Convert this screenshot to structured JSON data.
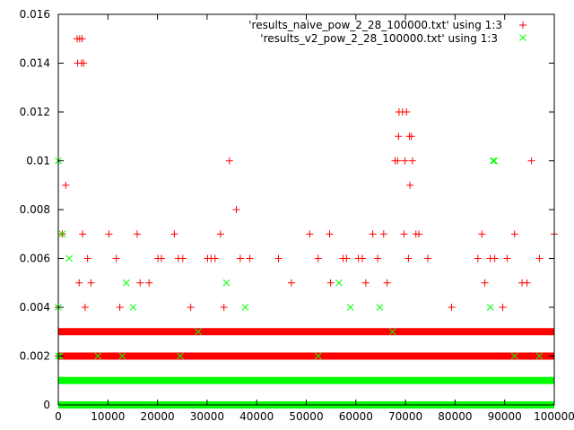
{
  "chart_data": {
    "type": "scatter",
    "xlim": [
      0,
      100000
    ],
    "ylim": [
      0,
      0.016
    ],
    "x_ticks": [
      {
        "value": 0,
        "label": "0"
      },
      {
        "value": 10000,
        "label": "10000"
      },
      {
        "value": 20000,
        "label": "20000"
      },
      {
        "value": 30000,
        "label": "30000"
      },
      {
        "value": 40000,
        "label": "40000"
      },
      {
        "value": 50000,
        "label": "50000"
      },
      {
        "value": 60000,
        "label": "60000"
      },
      {
        "value": 70000,
        "label": "70000"
      },
      {
        "value": 80000,
        "label": "80000"
      },
      {
        "value": 90000,
        "label": "90000"
      },
      {
        "value": 100000,
        "label": "100000"
      }
    ],
    "y_ticks": [
      {
        "value": 0,
        "label": "0"
      },
      {
        "value": 0.002,
        "label": "0.002"
      },
      {
        "value": 0.004,
        "label": "0.004"
      },
      {
        "value": 0.006,
        "label": "0.006"
      },
      {
        "value": 0.008,
        "label": "0.008"
      },
      {
        "value": 0.01,
        "label": "0.01"
      },
      {
        "value": 0.012,
        "label": "0.012"
      },
      {
        "value": 0.014,
        "label": "0.014"
      },
      {
        "value": 0.016,
        "label": "0.016"
      }
    ],
    "grid": false,
    "legend_position": "top-right",
    "series": [
      {
        "name": "'results_naive_pow_2_28_100000.txt' using 1:3",
        "marker": "plus",
        "color": "#ff0000",
        "bands": [
          {
            "y": 0.003,
            "x_range": [
              0,
              100000
            ]
          },
          {
            "y": 0.002,
            "x_range": [
              0,
              100000
            ]
          }
        ],
        "points": [
          {
            "x": 0,
            "y": 0.004
          },
          {
            "x": 0,
            "y": 0.002
          },
          {
            "x": 300,
            "y": 0.002
          },
          {
            "x": 800,
            "y": 0.007
          },
          {
            "x": 1500,
            "y": 0.009
          },
          {
            "x": 3800,
            "y": 0.015
          },
          {
            "x": 4300,
            "y": 0.015
          },
          {
            "x": 4800,
            "y": 0.015
          },
          {
            "x": 3900,
            "y": 0.014
          },
          {
            "x": 4700,
            "y": 0.014
          },
          {
            "x": 5100,
            "y": 0.014
          },
          {
            "x": 4200,
            "y": 0.005
          },
          {
            "x": 4900,
            "y": 0.007
          },
          {
            "x": 5400,
            "y": 0.004
          },
          {
            "x": 5900,
            "y": 0.006
          },
          {
            "x": 6600,
            "y": 0.005
          },
          {
            "x": 10200,
            "y": 0.007
          },
          {
            "x": 11700,
            "y": 0.006
          },
          {
            "x": 12400,
            "y": 0.004
          },
          {
            "x": 15900,
            "y": 0.007
          },
          {
            "x": 16500,
            "y": 0.005
          },
          {
            "x": 18300,
            "y": 0.005
          },
          {
            "x": 20100,
            "y": 0.006
          },
          {
            "x": 20800,
            "y": 0.006
          },
          {
            "x": 23400,
            "y": 0.007
          },
          {
            "x": 24200,
            "y": 0.006
          },
          {
            "x": 25100,
            "y": 0.006
          },
          {
            "x": 26700,
            "y": 0.004
          },
          {
            "x": 30100,
            "y": 0.006
          },
          {
            "x": 30800,
            "y": 0.006
          },
          {
            "x": 31600,
            "y": 0.006
          },
          {
            "x": 32700,
            "y": 0.007
          },
          {
            "x": 33400,
            "y": 0.004
          },
          {
            "x": 34500,
            "y": 0.01
          },
          {
            "x": 35900,
            "y": 0.008
          },
          {
            "x": 36700,
            "y": 0.006
          },
          {
            "x": 38600,
            "y": 0.006
          },
          {
            "x": 44400,
            "y": 0.006
          },
          {
            "x": 47000,
            "y": 0.005
          },
          {
            "x": 50700,
            "y": 0.007
          },
          {
            "x": 52400,
            "y": 0.006
          },
          {
            "x": 54700,
            "y": 0.007
          },
          {
            "x": 54900,
            "y": 0.005
          },
          {
            "x": 57400,
            "y": 0.006
          },
          {
            "x": 58100,
            "y": 0.006
          },
          {
            "x": 60500,
            "y": 0.006
          },
          {
            "x": 61300,
            "y": 0.006
          },
          {
            "x": 62000,
            "y": 0.005
          },
          {
            "x": 63400,
            "y": 0.007
          },
          {
            "x": 64400,
            "y": 0.006
          },
          {
            "x": 65600,
            "y": 0.007
          },
          {
            "x": 66300,
            "y": 0.005
          },
          {
            "x": 67900,
            "y": 0.01
          },
          {
            "x": 68400,
            "y": 0.01
          },
          {
            "x": 68600,
            "y": 0.011
          },
          {
            "x": 68700,
            "y": 0.012
          },
          {
            "x": 69400,
            "y": 0.012
          },
          {
            "x": 69700,
            "y": 0.007
          },
          {
            "x": 69900,
            "y": 0.01
          },
          {
            "x": 70200,
            "y": 0.012
          },
          {
            "x": 70600,
            "y": 0.006
          },
          {
            "x": 70800,
            "y": 0.011
          },
          {
            "x": 70900,
            "y": 0.009
          },
          {
            "x": 71200,
            "y": 0.011
          },
          {
            "x": 71400,
            "y": 0.01
          },
          {
            "x": 72100,
            "y": 0.007
          },
          {
            "x": 72700,
            "y": 0.007
          },
          {
            "x": 74500,
            "y": 0.006
          },
          {
            "x": 79300,
            "y": 0.004
          },
          {
            "x": 84600,
            "y": 0.006
          },
          {
            "x": 85400,
            "y": 0.007
          },
          {
            "x": 86000,
            "y": 0.005
          },
          {
            "x": 87100,
            "y": 0.006
          },
          {
            "x": 88000,
            "y": 0.006
          },
          {
            "x": 89600,
            "y": 0.004
          },
          {
            "x": 90500,
            "y": 0.006
          },
          {
            "x": 92000,
            "y": 0.007
          },
          {
            "x": 93500,
            "y": 0.005
          },
          {
            "x": 94500,
            "y": 0.005
          },
          {
            "x": 95400,
            "y": 0.01
          },
          {
            "x": 97000,
            "y": 0.006
          },
          {
            "x": 100000,
            "y": 0.007
          }
        ]
      },
      {
        "name": "'results_v2_pow_2_28_100000.txt' using 1:3",
        "marker": "cross",
        "color": "#00ff00",
        "bands": [
          {
            "y": 0.001,
            "x_range": [
              0,
              100000
            ]
          },
          {
            "y": 0.0,
            "x_range": [
              0,
              100000
            ]
          }
        ],
        "points": [
          {
            "x": 0,
            "y": 0.01
          },
          {
            "x": 0,
            "y": 0.004
          },
          {
            "x": 0,
            "y": 0.002
          },
          {
            "x": 300,
            "y": 0.002
          },
          {
            "x": 800,
            "y": 0.007
          },
          {
            "x": 2200,
            "y": 0.006
          },
          {
            "x": 8000,
            "y": 0.002
          },
          {
            "x": 12900,
            "y": 0.002
          },
          {
            "x": 13700,
            "y": 0.005
          },
          {
            "x": 15100,
            "y": 0.004
          },
          {
            "x": 24600,
            "y": 0.002
          },
          {
            "x": 28200,
            "y": 0.003
          },
          {
            "x": 33900,
            "y": 0.005
          },
          {
            "x": 37700,
            "y": 0.004
          },
          {
            "x": 52400,
            "y": 0.002
          },
          {
            "x": 56600,
            "y": 0.005
          },
          {
            "x": 58900,
            "y": 0.004
          },
          {
            "x": 64800,
            "y": 0.004
          },
          {
            "x": 67400,
            "y": 0.003
          },
          {
            "x": 87100,
            "y": 0.004
          },
          {
            "x": 87700,
            "y": 0.01
          },
          {
            "x": 87900,
            "y": 0.01
          },
          {
            "x": 92000,
            "y": 0.002
          },
          {
            "x": 97000,
            "y": 0.002
          }
        ]
      }
    ]
  }
}
